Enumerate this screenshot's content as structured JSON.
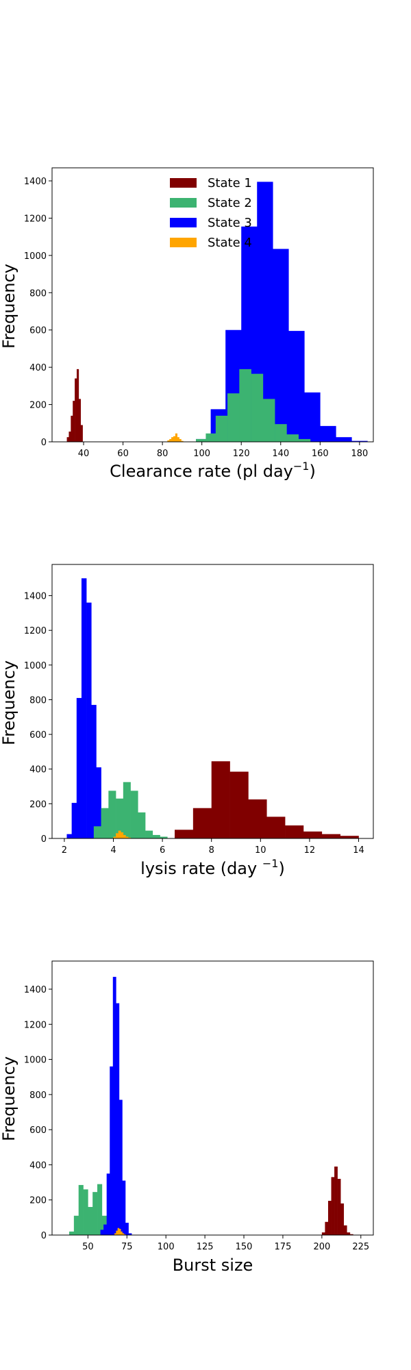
{
  "chart_data": [
    {
      "type": "histogram",
      "xlabel_main": "Clearance rate (pl day",
      "xlabel_sup": "−1",
      "xlabel_end": ")",
      "ylabel": "Frequency",
      "xlim": [
        24,
        187
      ],
      "ylim": [
        0,
        1470
      ],
      "xticks": [
        40,
        60,
        80,
        100,
        120,
        140,
        160,
        180
      ],
      "yticks": [
        0,
        200,
        400,
        600,
        800,
        1000,
        1200,
        1400
      ],
      "legend": {
        "placement": "top-center",
        "entries": [
          "State 1",
          "State 2",
          "State 3",
          "State 4"
        ]
      },
      "series": [
        {
          "name": "State 1",
          "color": "#800000",
          "bin_edges": [
            31.5,
            32.5,
            33.5,
            34.5,
            35.5,
            36.5,
            37.5,
            38.5,
            39.5
          ],
          "counts": [
            25,
            55,
            140,
            220,
            340,
            390,
            230,
            90
          ]
        },
        {
          "name": "State 3",
          "color": "#0000FF",
          "bin_edges": [
            97,
            104.5,
            112,
            120,
            128,
            136,
            144,
            152,
            160,
            168,
            176,
            184
          ],
          "counts": [
            15,
            175,
            600,
            1155,
            1395,
            1035,
            595,
            265,
            85,
            25,
            5
          ]
        },
        {
          "name": "State 2",
          "color": "#3CB371",
          "bin_edges": [
            97,
            102,
            107,
            113,
            119,
            125,
            131,
            137,
            143,
            149,
            155
          ],
          "counts": [
            15,
            45,
            140,
            260,
            390,
            365,
            230,
            95,
            40,
            15
          ]
        },
        {
          "name": "State 4",
          "color": "#FFA500",
          "bin_edges": [
            82.5,
            83.5,
            84.5,
            85.5,
            86.5,
            87.5,
            88.5,
            89.5,
            90.5
          ],
          "counts": [
            8,
            15,
            25,
            30,
            45,
            25,
            15,
            5
          ]
        }
      ]
    },
    {
      "type": "histogram",
      "xlabel_main": "lysis rate (day ",
      "xlabel_sup": "−1",
      "xlabel_end": ")",
      "ylabel": "Frequency",
      "xlim": [
        1.5,
        14.6
      ],
      "ylim": [
        0,
        1580
      ],
      "xticks": [
        2,
        4,
        6,
        8,
        10,
        12,
        14
      ],
      "yticks": [
        0,
        200,
        400,
        600,
        800,
        1000,
        1200,
        1400
      ],
      "series": [
        {
          "name": "State 3",
          "color": "#0000FF",
          "bin_edges": [
            2.1,
            2.3,
            2.5,
            2.7,
            2.9,
            3.1,
            3.3,
            3.5
          ],
          "counts": [
            25,
            205,
            810,
            1500,
            1360,
            770,
            410,
            70
          ]
        },
        {
          "name": "State 2",
          "color": "#3CB371",
          "bin_edges": [
            3.2,
            3.5,
            3.8,
            4.1,
            4.4,
            4.7,
            5.0,
            5.3,
            5.6,
            5.9,
            6.2
          ],
          "counts": [
            70,
            175,
            275,
            230,
            325,
            275,
            150,
            45,
            20,
            10
          ]
        },
        {
          "name": "State 1",
          "color": "#800000",
          "bin_edges": [
            6.5,
            7.25,
            8.0,
            8.75,
            9.5,
            10.25,
            11.0,
            11.75,
            12.5,
            13.25,
            14.0
          ],
          "counts": [
            50,
            175,
            445,
            385,
            225,
            125,
            75,
            40,
            25,
            15
          ]
        },
        {
          "name": "State 4",
          "color": "#FFA500",
          "bin_edges": [
            4.0,
            4.1,
            4.2,
            4.3,
            4.4,
            4.5,
            4.6,
            4.7
          ],
          "counts": [
            10,
            30,
            45,
            35,
            20,
            10,
            5
          ]
        }
      ]
    },
    {
      "type": "histogram",
      "xlabel_main": "Burst size",
      "xlabel_sup": "",
      "xlabel_end": "",
      "ylabel": "Frequency",
      "xlim": [
        27,
        233
      ],
      "ylim": [
        0,
        1560
      ],
      "xticks": [
        50,
        75,
        100,
        125,
        150,
        175,
        200,
        225
      ],
      "yticks": [
        0,
        200,
        400,
        600,
        800,
        1000,
        1200,
        1400
      ],
      "series": [
        {
          "name": "State 2",
          "color": "#3CB371",
          "bin_edges": [
            38,
            41,
            44,
            47,
            50,
            53,
            56,
            59,
            62
          ],
          "counts": [
            20,
            110,
            285,
            260,
            160,
            245,
            290,
            110
          ]
        },
        {
          "name": "State 3",
          "color": "#0000FF",
          "bin_edges": [
            58,
            60,
            62,
            64,
            66,
            68,
            70,
            72,
            74,
            76,
            78
          ],
          "counts": [
            30,
            60,
            350,
            960,
            1470,
            1320,
            770,
            310,
            70,
            10
          ]
        },
        {
          "name": "State 4",
          "color": "#FFA500",
          "bin_edges": [
            67,
            68,
            69,
            70,
            71,
            72,
            73,
            74
          ],
          "counts": [
            10,
            25,
            40,
            35,
            20,
            10,
            5
          ]
        },
        {
          "name": "State 1",
          "color": "#800000",
          "bin_edges": [
            200,
            202,
            204,
            206,
            208,
            210,
            212,
            214,
            216,
            218,
            220
          ],
          "counts": [
            15,
            75,
            195,
            330,
            390,
            320,
            180,
            55,
            15,
            5
          ]
        }
      ]
    }
  ]
}
